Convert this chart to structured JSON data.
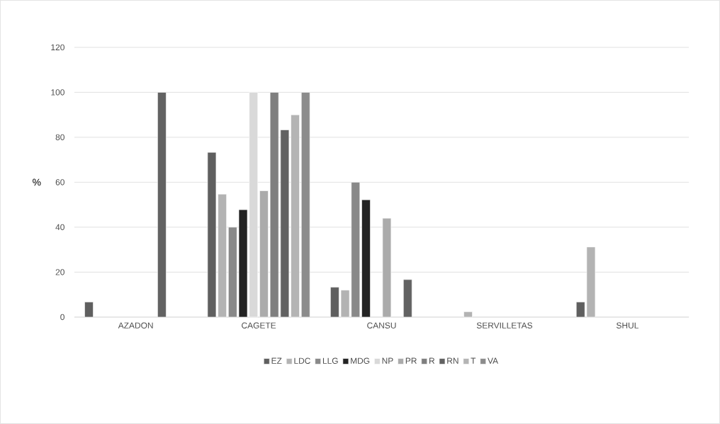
{
  "chart_data": {
    "type": "bar",
    "ylabel": "%",
    "categories": [
      "AZADON",
      "CAGETE",
      "CANSU",
      "SERVILLETAS",
      "SHUL"
    ],
    "series": [
      {
        "name": "EZ",
        "color": "#5f5f5f",
        "values": [
          6.7,
          73.3,
          13.3,
          null,
          6.7
        ]
      },
      {
        "name": "LDC",
        "color": "#b3b3b3",
        "values": [
          null,
          54.7,
          12,
          2.4,
          31.2
        ]
      },
      {
        "name": "LLG",
        "color": "#898989",
        "values": [
          null,
          40,
          60,
          null,
          null
        ]
      },
      {
        "name": "MDG",
        "color": "#232323",
        "values": [
          null,
          47.8,
          52.2,
          null,
          null
        ]
      },
      {
        "name": "NP",
        "color": "#d9d9d9",
        "values": [
          null,
          100,
          null,
          null,
          null
        ]
      },
      {
        "name": "PR",
        "color": "#ababab",
        "values": [
          null,
          56.2,
          44,
          null,
          null
        ]
      },
      {
        "name": "R",
        "color": "#7f7f7f",
        "values": [
          null,
          100,
          null,
          null,
          null
        ]
      },
      {
        "name": "RN",
        "color": "#626262",
        "values": [
          100,
          83.3,
          16.7,
          null,
          null
        ]
      },
      {
        "name": "T",
        "color": "#b4b4b4",
        "values": [
          null,
          90,
          null,
          null,
          null
        ]
      },
      {
        "name": "VA",
        "color": "#8c8c8c",
        "values": [
          null,
          100,
          null,
          null,
          null
        ]
      }
    ],
    "ylim": [
      0,
      120
    ],
    "yticks": [
      0,
      20,
      40,
      60,
      80,
      100,
      120
    ],
    "grid": "y",
    "legend": "bottom"
  }
}
